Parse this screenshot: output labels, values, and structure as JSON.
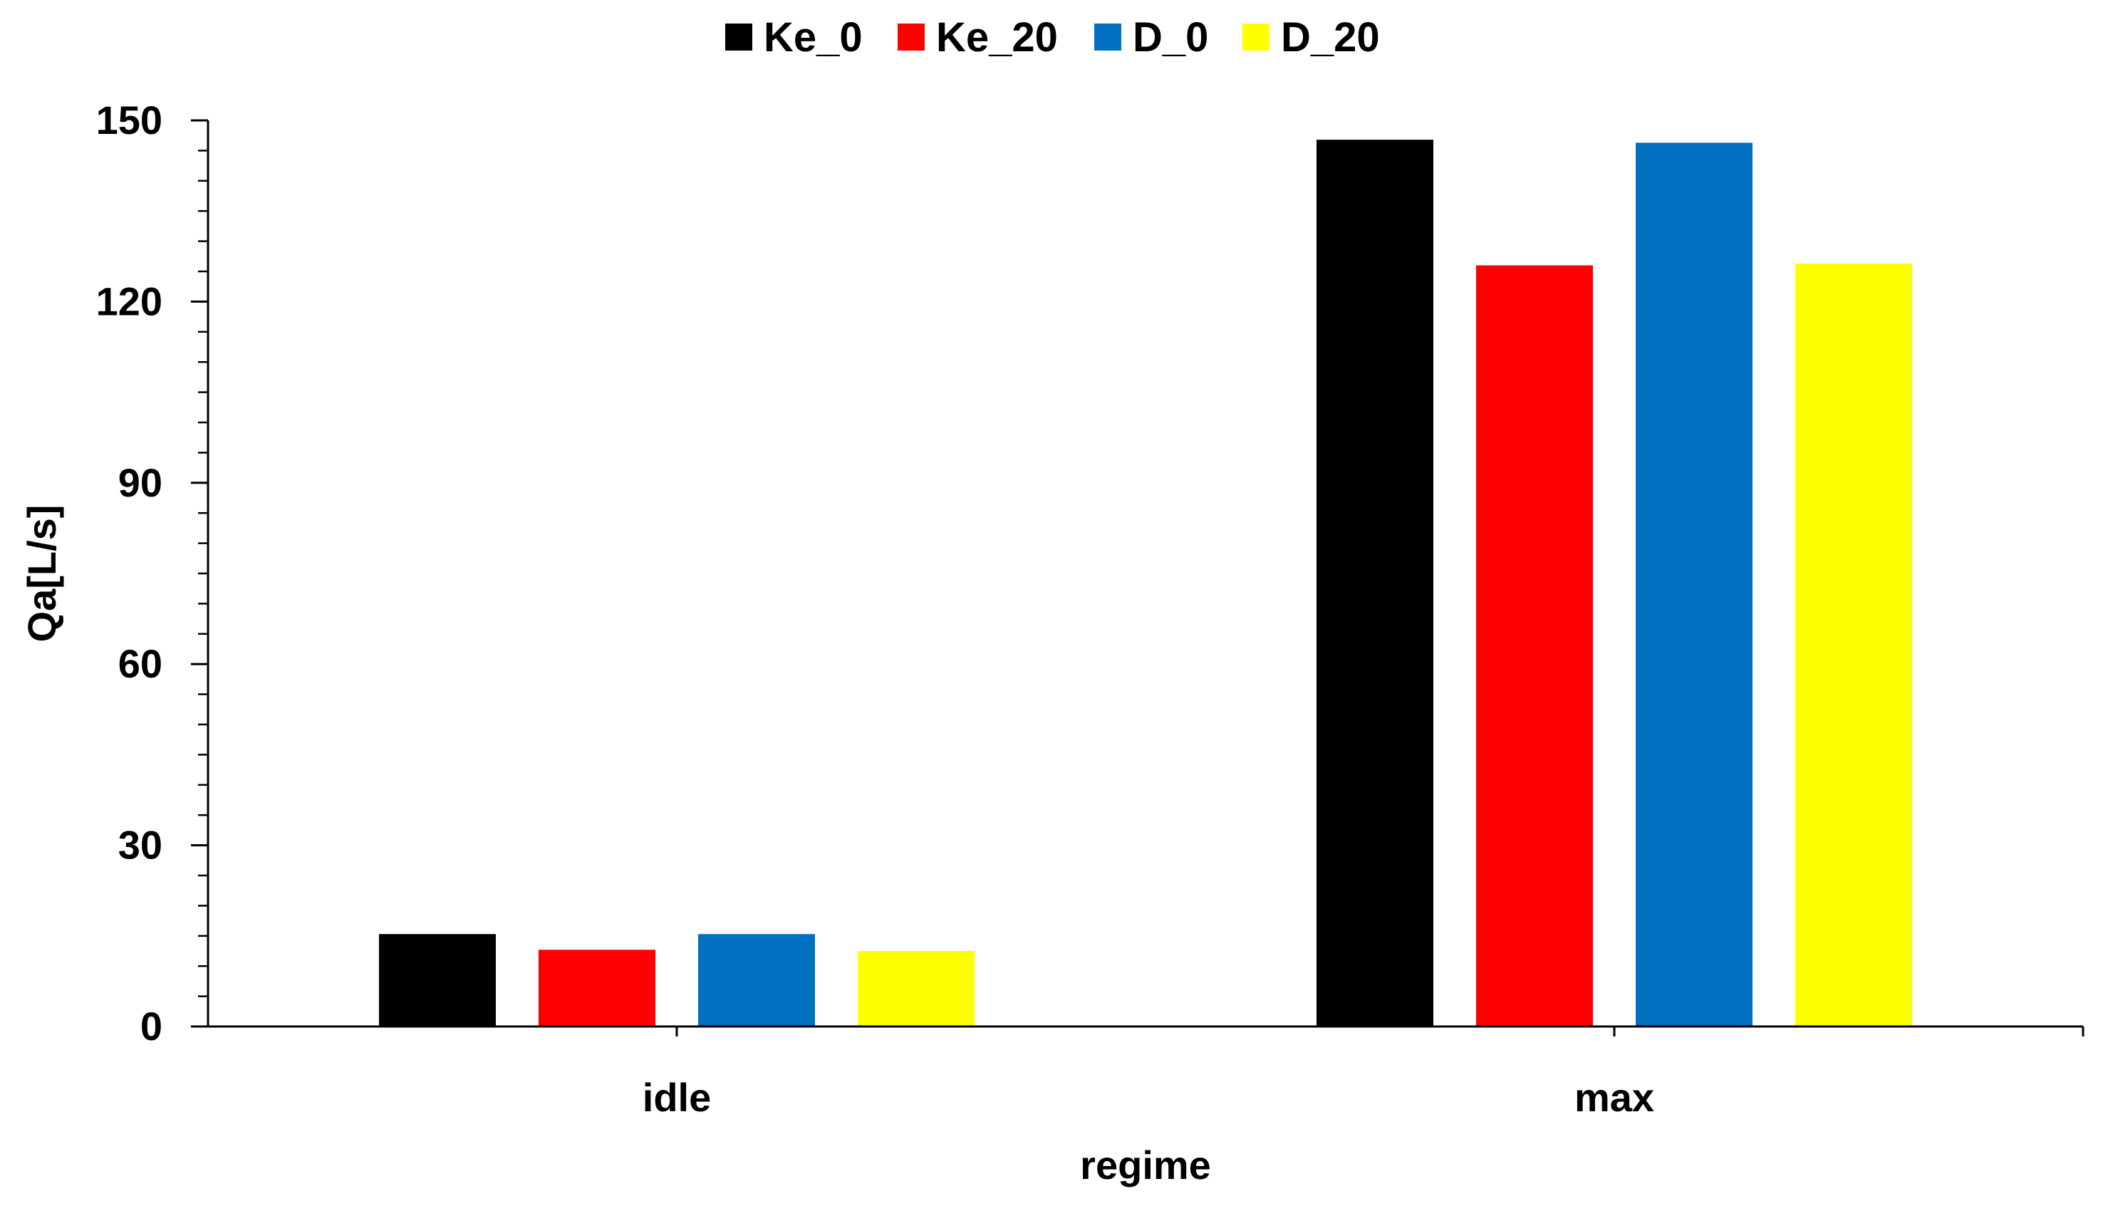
{
  "chart_data": {
    "type": "bar",
    "categories": [
      "idle",
      "max"
    ],
    "series": [
      {
        "name": "Ke_0",
        "color": "#000000",
        "values": [
          15.3,
          146.8
        ]
      },
      {
        "name": "Ke_20",
        "color": "#FF0000",
        "values": [
          12.7,
          126.0
        ]
      },
      {
        "name": "D_0",
        "color": "#0070C0",
        "values": [
          15.3,
          146.3
        ]
      },
      {
        "name": "D_20",
        "color": "#FFFF00",
        "values": [
          12.5,
          126.3
        ]
      }
    ],
    "title": "",
    "xlabel": "regime",
    "ylabel": "Qa[L/s]",
    "ylim": [
      0,
      150
    ],
    "yticks": [
      0,
      30,
      60,
      90,
      120,
      150
    ],
    "grid": false,
    "legend_position": "top-center"
  }
}
